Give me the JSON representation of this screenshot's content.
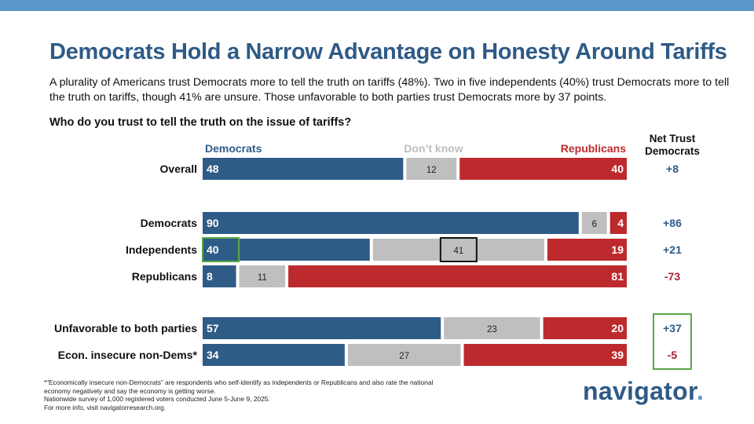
{
  "title": "Democrats Hold a Narrow Advantage on Honesty Around Tariffs",
  "subtitle": "A plurality of Americans trust Democrats more to tell the truth on tariffs (48%). Two in five independents (40%) trust Democrats more to tell the truth on tariffs, though 41% are unsure. Those unfavorable to both parties trust Democrats more by 37 points.",
  "question": "Who do you trust to tell the truth on the issue of tariffs?",
  "footnote": [
    "*“Economically insecure non-Democrats” are respondents who self-identify as independents or Republicans and also rate the national",
    "economy negatively and say the economy is getting worse.",
    "Nationwide survey of 1,000 registered voters conducted June 5-June 9, 2025.",
    "For more info, visit navigatorresearch.org."
  ],
  "logo": {
    "text": "navigator",
    "dot": "."
  },
  "colors": {
    "democrats": "#2f5b87",
    "dont_know": "#bfbfbf",
    "republicans": "#bd2a2e",
    "net_positive": "#2f5b87",
    "net_negative": "#a6213a",
    "highlight_green": "#5aa84a",
    "highlight_black": "#111111",
    "band": "#5b97c9"
  },
  "chart_data": {
    "type": "bar",
    "orientation": "horizontal",
    "stacked": true,
    "legend": [
      "Democrats",
      "Don’t know",
      "Republicans"
    ],
    "net_header": "Net Trust Democrats",
    "categories": [
      "Overall",
      "Democrats",
      "Independents",
      "Republicans",
      "Unfavorable to both parties",
      "Econ. insecure non-Dems*"
    ],
    "series": [
      {
        "name": "Democrats",
        "values": [
          48,
          90,
          40,
          8,
          57,
          34
        ]
      },
      {
        "name": "Don’t know",
        "values": [
          12,
          6,
          41,
          11,
          23,
          27
        ]
      },
      {
        "name": "Republicans",
        "values": [
          40,
          4,
          19,
          81,
          20,
          39
        ]
      }
    ],
    "net_labels": [
      "+8",
      "+86",
      "+21",
      "-73",
      "+37",
      "-5"
    ],
    "groups": [
      [
        0
      ],
      [
        1,
        2,
        3
      ],
      [
        4,
        5
      ]
    ],
    "highlights": [
      {
        "category": "Independents",
        "series": "Democrats",
        "style": "green-box"
      },
      {
        "category": "Independents",
        "series": "Don’t know",
        "style": "black-box"
      },
      {
        "categories": [
          "Unfavorable to both parties",
          "Econ. insecure non-Dems*"
        ],
        "series": "Net Trust Democrats",
        "style": "green-box"
      }
    ],
    "xlim": [
      0,
      100
    ]
  }
}
